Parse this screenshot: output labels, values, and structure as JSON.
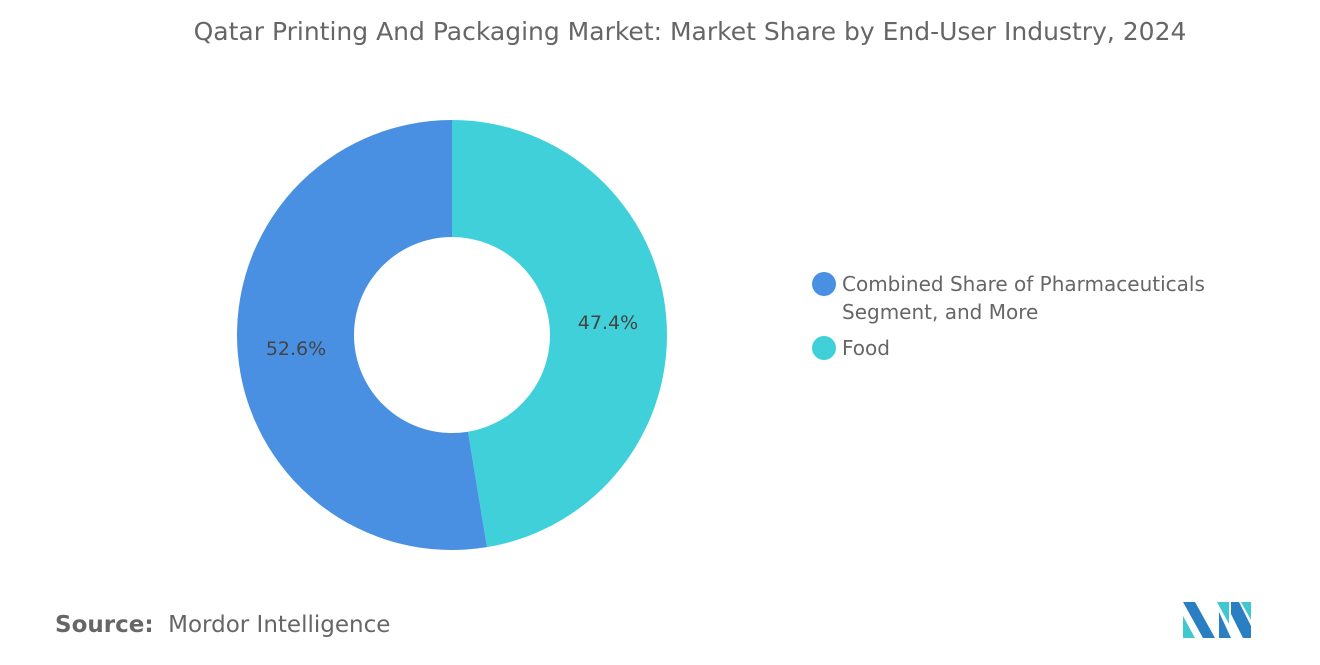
{
  "title": "Qatar Printing And Packaging Market: Market Share by End-User Industry, 2024",
  "chart_data": {
    "type": "pie",
    "variant": "donut",
    "title": "Qatar Printing And Packaging Market: Market Share by End-User Industry, 2024",
    "categories": [
      "Food",
      "Combined Share of Pharmaceuticals Segment, and More"
    ],
    "values": [
      47.4,
      52.6
    ],
    "labels": [
      "47.4%",
      "52.6%"
    ],
    "colors": [
      "#40D0DA",
      "#4A90E2"
    ],
    "legend_position": "right",
    "legend": [
      {
        "label": "Combined Share of Pharmaceuticals Segment, and More",
        "color": "#4A90E2"
      },
      {
        "label": "Food",
        "color": "#40D0DA"
      }
    ]
  },
  "source": {
    "label": "Source:",
    "value": "Mordor Intelligence"
  }
}
